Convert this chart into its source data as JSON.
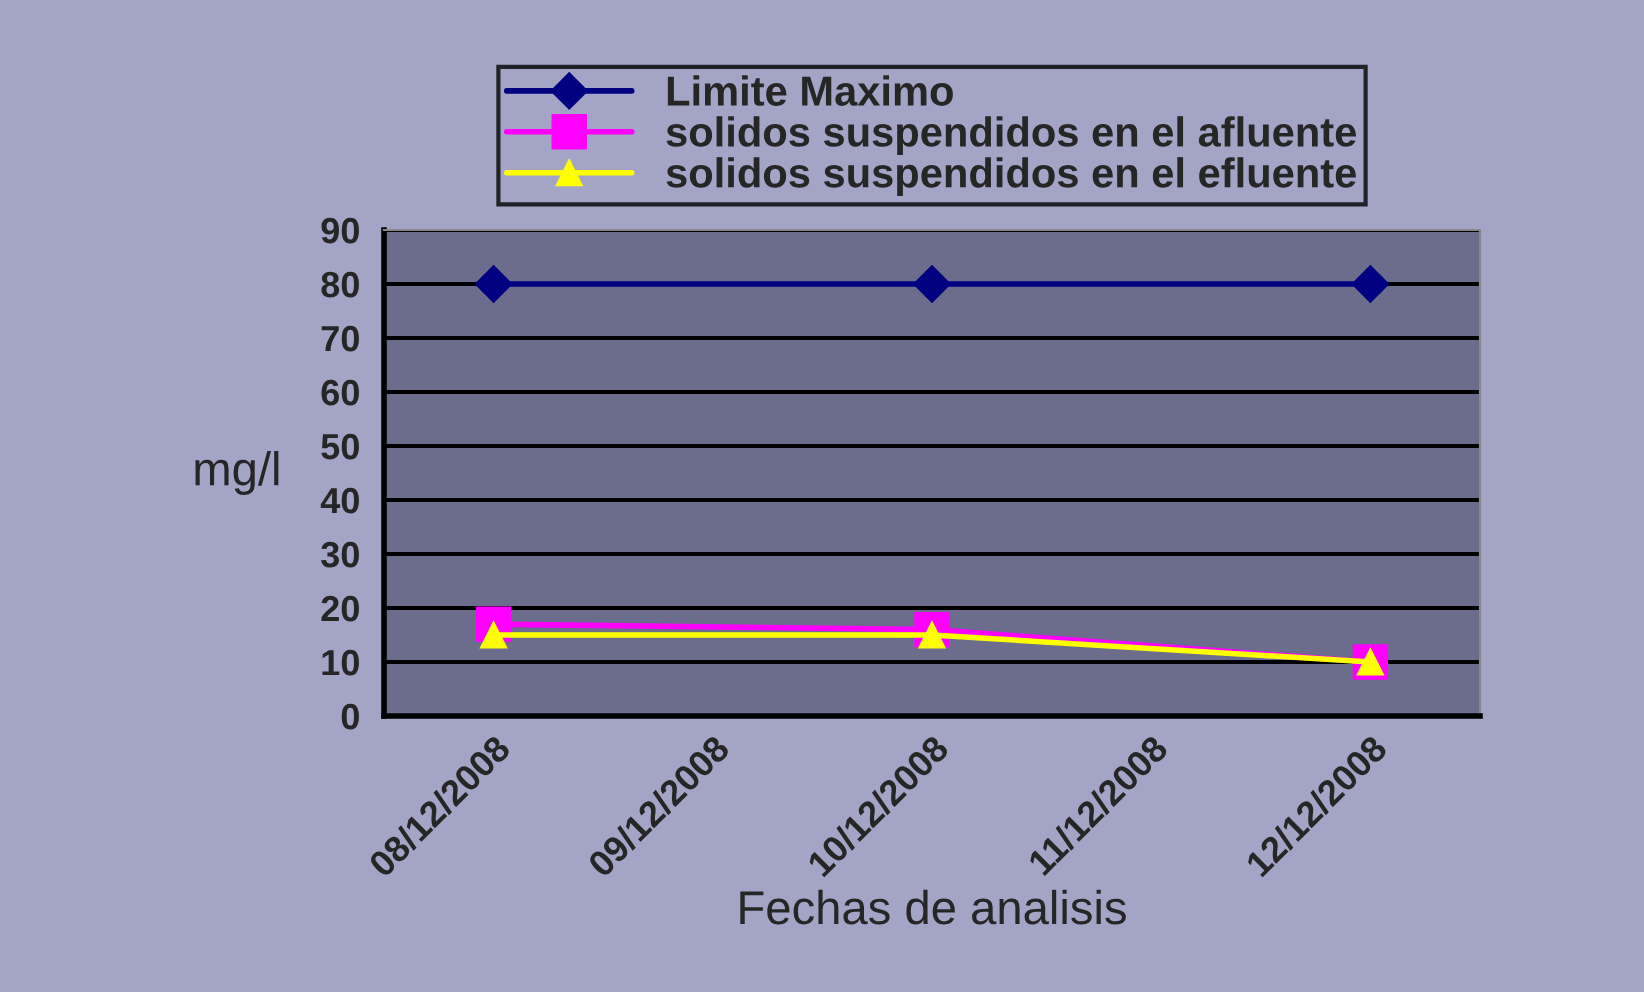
{
  "chart_data": {
    "type": "line",
    "xlabel": "Fechas de analisis",
    "ylabel": "mg/l",
    "categories": [
      "08/12/2008",
      "09/12/2008",
      "10/12/2008",
      "11/12/2008",
      "12/12/2008"
    ],
    "series": [
      {
        "name": "Limite Maximo",
        "color": "#000080",
        "marker": "diamond",
        "values": [
          80,
          null,
          80,
          null,
          80
        ]
      },
      {
        "name": "solidos suspendidos en el afluente",
        "color": "#ff00ff",
        "marker": "square",
        "values": [
          17,
          null,
          16,
          null,
          10
        ]
      },
      {
        "name": "solidos suspendidos en el efluente",
        "color": "#ffff00",
        "marker": "triangle",
        "values": [
          15,
          null,
          15,
          null,
          10
        ]
      }
    ],
    "ylim": [
      0,
      90
    ],
    "yticks": [
      0,
      10,
      20,
      30,
      40,
      50,
      60,
      70,
      80,
      90
    ],
    "grid": "y",
    "legend": "top",
    "line_style": "solid"
  }
}
